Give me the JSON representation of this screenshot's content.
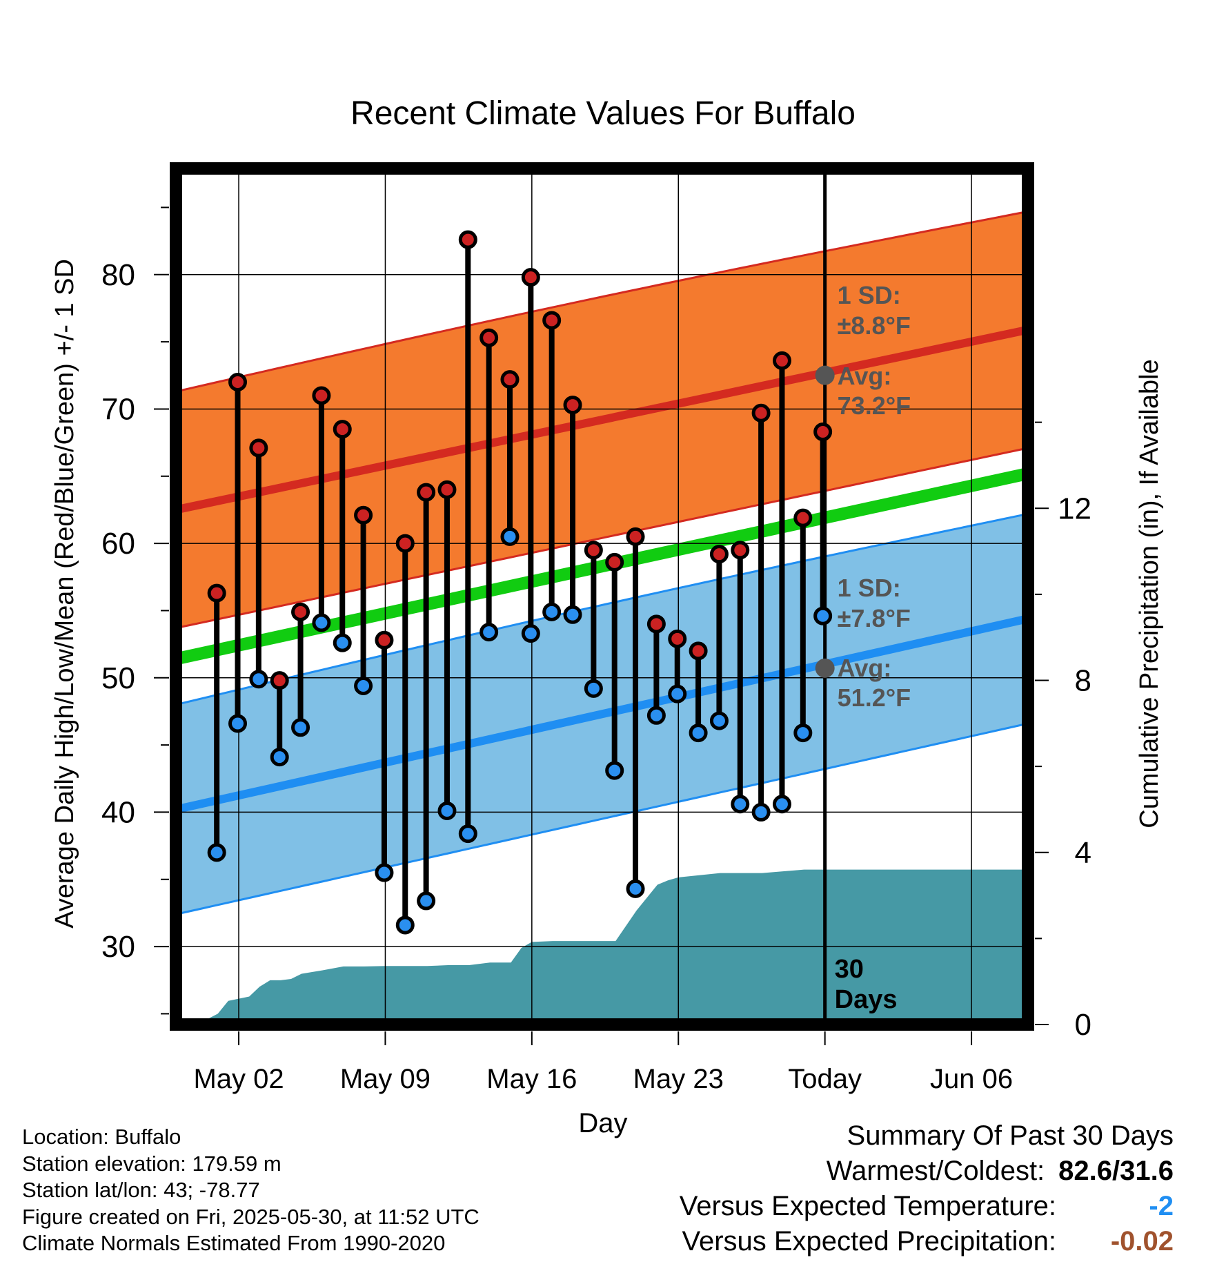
{
  "chart_data": {
    "type": "line",
    "title": "Recent Climate Values For Buffalo",
    "xlabel": "Day",
    "ylabel_left": "Average Daily High/Low/Mean (Red/Blue/Green) +/- 1 SD",
    "ylabel_right": "Cumulative Precipitation (in), If Available",
    "ylim_left": [
      24.2,
      87.9
    ],
    "ylim_right": [
      0,
      19.9
    ],
    "x_tick_labels": [
      "May 02",
      "May 09",
      "May 16",
      "May 23",
      "Today",
      "Jun 06"
    ],
    "x_tick_days": [
      2,
      9,
      16,
      23,
      30,
      37
    ],
    "xlim_days": [
      -1.0,
      39.7
    ],
    "y_left_ticks": [
      30,
      40,
      50,
      60,
      70,
      80
    ],
    "y_right_ticks": [
      0,
      4,
      8,
      12
    ],
    "today_day": 30,
    "today_label": "30\nDays",
    "days": [
      1,
      2,
      3,
      4,
      5,
      6,
      7,
      8,
      9,
      10,
      11,
      12,
      13,
      14,
      15,
      16,
      17,
      18,
      19,
      20,
      21,
      22,
      23,
      24,
      25,
      26,
      27,
      28,
      29
    ],
    "highs": [
      56.3,
      72.0,
      67.1,
      49.8,
      54.9,
      71.0,
      68.5,
      62.1,
      52.8,
      60.0,
      63.8,
      64.0,
      82.6,
      75.3,
      72.2,
      79.8,
      76.6,
      70.3,
      59.5,
      58.6,
      60.5,
      54.0,
      52.9,
      52.0,
      59.2,
      59.5,
      69.7,
      73.6,
      61.9
    ],
    "lows": [
      37.0,
      46.6,
      49.9,
      44.1,
      46.3,
      54.1,
      52.6,
      49.4,
      35.5,
      31.6,
      33.4,
      40.1,
      38.4,
      53.4,
      60.5,
      53.3,
      54.9,
      54.7,
      49.2,
      43.1,
      34.3,
      47.2,
      48.8,
      45.9,
      46.8,
      40.6,
      40.0,
      40.6,
      45.9
    ],
    "extra_point": {
      "day": 30,
      "high": 68.3,
      "low": 54.6
    },
    "avg_high": {
      "start": 62.5,
      "end": 75.9
    },
    "avg_low": {
      "start": 40.2,
      "end": 54.4
    },
    "avg_mean": {
      "start": 51.4,
      "end": 65.2
    },
    "sd_high": 8.8,
    "sd_low": 7.8,
    "precip_cumulative": [
      {
        "day": 0.0,
        "value": 0.0
      },
      {
        "day": 1.0,
        "value": 0.25
      },
      {
        "day": 1.5,
        "value": 0.55
      },
      {
        "day": 2.0,
        "value": 0.6
      },
      {
        "day": 2.5,
        "value": 0.65
      },
      {
        "day": 3.0,
        "value": 0.88
      },
      {
        "day": 3.5,
        "value": 1.03
      },
      {
        "day": 4.0,
        "value": 1.03
      },
      {
        "day": 4.5,
        "value": 1.06
      },
      {
        "day": 5.0,
        "value": 1.18
      },
      {
        "day": 6.0,
        "value": 1.26
      },
      {
        "day": 7.0,
        "value": 1.35
      },
      {
        "day": 8.0,
        "value": 1.35
      },
      {
        "day": 9.0,
        "value": 1.36
      },
      {
        "day": 10.0,
        "value": 1.36
      },
      {
        "day": 11.0,
        "value": 1.36
      },
      {
        "day": 12.0,
        "value": 1.38
      },
      {
        "day": 13.0,
        "value": 1.38
      },
      {
        "day": 14.0,
        "value": 1.44
      },
      {
        "day": 15.0,
        "value": 1.44
      },
      {
        "day": 15.5,
        "value": 1.78
      },
      {
        "day": 16.0,
        "value": 1.92
      },
      {
        "day": 17.0,
        "value": 1.94
      },
      {
        "day": 18.0,
        "value": 1.94
      },
      {
        "day": 19.0,
        "value": 1.94
      },
      {
        "day": 20.0,
        "value": 1.94
      },
      {
        "day": 21.0,
        "value": 2.65
      },
      {
        "day": 22.0,
        "value": 3.25
      },
      {
        "day": 22.5,
        "value": 3.35
      },
      {
        "day": 23.0,
        "value": 3.42
      },
      {
        "day": 24.0,
        "value": 3.47
      },
      {
        "day": 25.0,
        "value": 3.52
      },
      {
        "day": 26.0,
        "value": 3.52
      },
      {
        "day": 27.0,
        "value": 3.52
      },
      {
        "day": 28.0,
        "value": 3.56
      },
      {
        "day": 29.0,
        "value": 3.6
      },
      {
        "day": 39.7,
        "value": 3.6
      }
    ],
    "annotations": {
      "high_sd_label": "1 SD:",
      "high_sd_value": "±8.8°F",
      "high_avg_label": "Avg:",
      "high_avg_value": "73.2°F",
      "low_sd_label": "1 SD:",
      "low_sd_value": "±7.8°F",
      "low_avg_label": "Avg:",
      "low_avg_value": "51.2°F"
    },
    "colors": {
      "high_band": "#f47a2e",
      "high_line": "#d42a20",
      "low_band": "#80c0e6",
      "low_line": "#1f8ef2",
      "mean_line": "#11cc11",
      "precip": "#4699a5",
      "high_dot": "#cc2222",
      "low_dot": "#2a8ff0",
      "annotation": "#555555",
      "today_marker": "#555555"
    }
  },
  "footer": {
    "location": "Location: Buffalo",
    "elevation": "Station elevation: 179.59 m",
    "latlon": "Station lat/lon: 43; -78.77",
    "created": "Figure created on Fri, 2025-05-30, at 11:52 UTC",
    "normals": "Climate Normals Estimated From 1990-2020"
  },
  "summary": {
    "title": "Summary Of Past 30 Days",
    "warmest_label": "Warmest/Coldest:",
    "warmest_value": "82.6/31.6",
    "temp_label": "Versus Expected Temperature:",
    "temp_value": "-2",
    "temp_color": "#1f8ef2",
    "precip_label": "Versus Expected Precipitation:",
    "precip_value": "-0.02",
    "precip_color": "#a0522d"
  }
}
